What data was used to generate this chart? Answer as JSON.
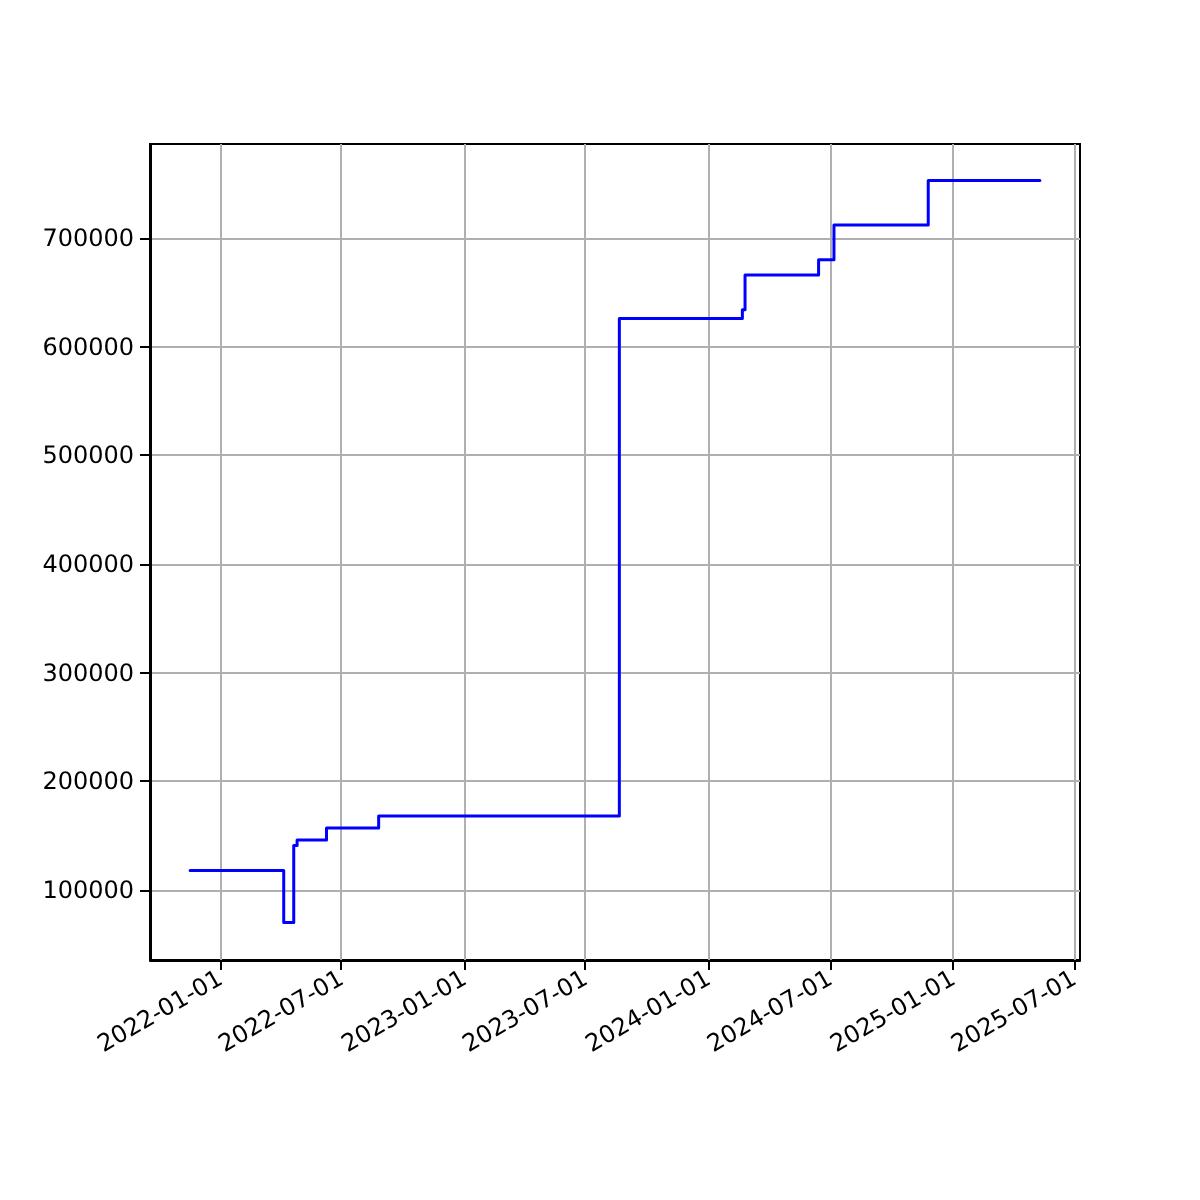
{
  "chart_data": {
    "type": "step",
    "grid": true,
    "marker": "none",
    "line_style": "solid",
    "x": [
      "2021-11-17",
      "2022-04-06",
      "2022-04-21",
      "2022-04-26",
      "2022-05-19",
      "2022-06-09",
      "2022-08-26",
      "2023-08-21",
      "2024-02-21",
      "2024-02-25",
      "2024-06-14",
      "2024-07-07",
      "2024-11-25",
      "2025-05-11"
    ],
    "series": [
      {
        "color": "#0000ff",
        "values": [
          118000,
          70000,
          141000,
          146000,
          146000,
          157000,
          168000,
          626000,
          634000,
          666000,
          680000,
          712000,
          753000,
          753000
        ]
      }
    ],
    "xlim": [
      "2021-09-18",
      "2025-07-10"
    ],
    "xticks": [
      "2022-01-01",
      "2022-07-01",
      "2023-01-01",
      "2023-07-01",
      "2024-01-01",
      "2024-07-01",
      "2025-01-01",
      "2025-07-01"
    ],
    "ylim": [
      35600,
      786500
    ],
    "yticks": [
      100000,
      200000,
      300000,
      400000,
      500000,
      600000,
      700000
    ]
  }
}
